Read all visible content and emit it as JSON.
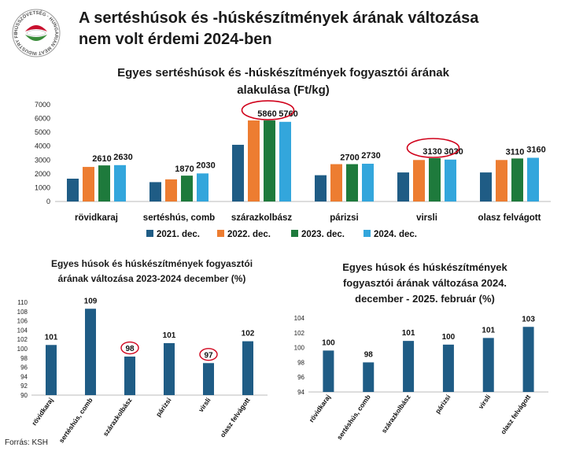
{
  "logo": {
    "text": "HÚSSZÖVETSÉG · HUNGARIAN MEAT INDUSTRY FEDERATION",
    "colors": {
      "red": "#c8102e",
      "green": "#3a8d3a",
      "ring": "#888888"
    }
  },
  "headline": {
    "line1": "A sertéshúsok és -húskészítmények árának változása",
    "line2": "nem volt érdemi 2024-ben"
  },
  "source": "Forrás: KSH",
  "chart_data": [
    {
      "type": "bar",
      "title": "Egyes sertéshúsok és -húskészítmények fogyasztói árának alakulása (Ft/kg)",
      "title_lines": [
        "Egyes sertéshúsok és -húskészítmények fogyasztói árának",
        "alakulása (Ft/kg)"
      ],
      "categories": [
        "rövidkaraj",
        "sertéshús, comb",
        "szárazkolbász",
        "párizsi",
        "virsli",
        "olasz felvágott"
      ],
      "series": [
        {
          "name": "2021. dec.",
          "color": "#1f5c85",
          "values": [
            1650,
            1400,
            4100,
            1900,
            2100,
            2100
          ]
        },
        {
          "name": "2022. dec.",
          "color": "#ed7d31",
          "values": [
            2500,
            1600,
            5860,
            2700,
            3000,
            3000
          ]
        },
        {
          "name": "2023. dec.",
          "color": "#1e7a3c",
          "values": [
            2610,
            1870,
            5860,
            2700,
            3130,
            3110
          ]
        },
        {
          "name": "2024. dec.",
          "color": "#33a6dc",
          "values": [
            2630,
            2030,
            5760,
            2730,
            3030,
            3160
          ]
        }
      ],
      "data_labels": [
        {
          "category": 0,
          "labels": [
            "2610",
            "2630"
          ]
        },
        {
          "category": 1,
          "labels": [
            "1870",
            "2030"
          ]
        },
        {
          "category": 2,
          "labels": [
            "5860",
            "5760"
          ]
        },
        {
          "category": 3,
          "labels": [
            "2700",
            "2730"
          ]
        },
        {
          "category": 4,
          "labels": [
            "3130",
            "3030"
          ]
        },
        {
          "category": 5,
          "labels": [
            "3110",
            "3160"
          ]
        }
      ],
      "circled_categories": [
        2,
        4
      ],
      "ylim": [
        0,
        7000
      ],
      "yticks": [
        0,
        1000,
        2000,
        3000,
        4000,
        5000,
        6000,
        7000
      ],
      "ytick_labels": [
        "0",
        "1000",
        "2000",
        "3000",
        "4000",
        "5000",
        "6000",
        "7000"
      ],
      "legend": "bottom"
    },
    {
      "type": "bar",
      "title": "Egyes húsok és húskészítmények fogyasztói árának változása 2023-2024 december (%)",
      "title_lines": [
        "Egyes húsok és húskészítmények fogyasztói",
        "árának változása 2023-2024 december (%)"
      ],
      "categories": [
        "rövidkaraj",
        "sertéshús, comb",
        "szárazkolbász",
        "párizsi",
        "virsli",
        "olasz felvágott"
      ],
      "values": [
        101,
        109,
        98,
        101,
        97,
        102
      ],
      "plot_values": [
        100.8,
        108.6,
        98.3,
        101.2,
        96.9,
        101.6
      ],
      "value_labels": [
        "101",
        "109",
        "98",
        "101",
        "97",
        "102"
      ],
      "circled": [
        2,
        4
      ],
      "color": "#1f5c85",
      "ylim": [
        90,
        110
      ],
      "yticks": [
        90,
        92,
        94,
        96,
        98,
        100,
        102,
        104,
        106,
        108,
        110
      ],
      "ytick_labels": [
        "90",
        "92",
        "94",
        "96",
        "98",
        "100",
        "102",
        "104",
        "106",
        "108",
        "110"
      ]
    },
    {
      "type": "bar",
      "title": "Egyes húsok és húskészítmények fogyasztói árának változása 2024. december - 2025. február (%)",
      "title_lines": [
        "Egyes húsok és húskészítmények",
        "fogyasztói árának változása 2024.",
        "december - 2025. február (%)"
      ],
      "categories": [
        "rövidkaraj",
        "sertéshús, comb",
        "szárazkolbász",
        "párizsi",
        "virsli",
        "olasz felvágott"
      ],
      "values": [
        100,
        98,
        101,
        100,
        101,
        103
      ],
      "plot_values": [
        99.6,
        98.0,
        100.9,
        100.4,
        101.3,
        102.8
      ],
      "value_labels": [
        "100",
        "98",
        "101",
        "100",
        "101",
        "103"
      ],
      "circled": [],
      "color": "#1f5c85",
      "ylim": [
        94,
        104
      ],
      "yticks": [
        94,
        96,
        98,
        100,
        102,
        104
      ],
      "ytick_labels": [
        "94",
        "96",
        "98",
        "100",
        "102",
        "104"
      ]
    }
  ]
}
